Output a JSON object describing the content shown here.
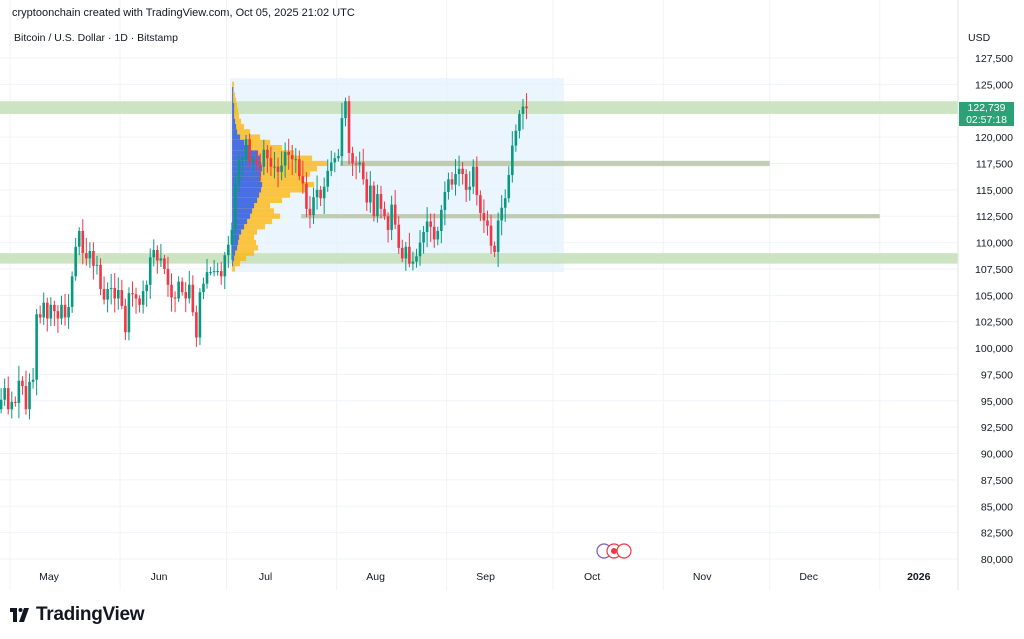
{
  "header": {
    "caption": "cryptoonchain created with TradingView.com, Oct 05, 2025 21:02 UTC",
    "symbol": "Bitcoin / U.S. Dollar · 1D · Bitstamp"
  },
  "price_scale": {
    "currency": "USD",
    "last_price": "122,739",
    "countdown": "02:57:18"
  },
  "logo": {
    "text": "TradingView",
    "icon": "tradingview-logo-icon"
  },
  "colors": {
    "up": "#089981",
    "down": "#f23645",
    "zone_fill": "#c8e1bd",
    "range_fill": "#e3f2fd",
    "profile_blue": "#2962ff",
    "profile_orange": "#ffb300",
    "last_price_tag": "#2aa275"
  },
  "chart_data": {
    "type": "candlestick",
    "ylim": [
      80000,
      127500
    ],
    "y_ticks": [
      80000,
      82500,
      85000,
      87500,
      90000,
      92500,
      95000,
      97500,
      100000,
      102500,
      105000,
      107500,
      110000,
      112500,
      115000,
      117500,
      120000,
      122500,
      125000,
      127500
    ],
    "y_tick_labels": [
      "80,000",
      "82,500",
      "85,000",
      "87,500",
      "90,000",
      "92,500",
      "95,000",
      "97,500",
      "100,000",
      "102,500",
      "105,000",
      "107,500",
      "110,000",
      "112,500",
      "115,000",
      "117,500",
      "120,000",
      "122,500",
      "125,000",
      "127,500"
    ],
    "x_ticks": [
      {
        "label": "May",
        "day": 0
      },
      {
        "label": "Jun",
        "day": 31
      },
      {
        "label": "Jul",
        "day": 61
      },
      {
        "label": "Aug",
        "day": 92
      },
      {
        "label": "Sep",
        "day": 123
      },
      {
        "label": "Oct",
        "day": 153
      },
      {
        "label": "Nov",
        "day": 184
      },
      {
        "label": "Dec",
        "day": 214
      },
      {
        "label": "2026",
        "day": 245
      }
    ],
    "candles": {
      "start": "2025-04-22",
      "interval": "1D",
      "closes": [
        93500,
        93800,
        94300,
        94600,
        95000,
        94200,
        95100,
        96200,
        94200,
        94900,
        94800,
        96900,
        96400,
        94200,
        96800,
        97000,
        103200,
        102900,
        104300,
        102800,
        104100,
        103500,
        102800,
        104100,
        102900,
        103900,
        106800,
        109600,
        111100,
        109000,
        108500,
        109200,
        107800,
        107900,
        105600,
        104600,
        105600,
        105700,
        104700,
        105500,
        104000,
        101500,
        105200,
        105100,
        104700,
        104100,
        105400,
        106000,
        108600,
        109300,
        108300,
        108500,
        107500,
        106000,
        104800,
        104700,
        106300,
        105300,
        104700,
        106000,
        103400,
        101000,
        105300,
        106100,
        107200,
        107200,
        107300,
        107300,
        106800,
        108800,
        109800,
        111200,
        115500,
        117800,
        117900,
        119800,
        117700,
        117900,
        117500,
        117200,
        118800,
        118000,
        117200,
        117200,
        116700,
        117300,
        118600,
        118300,
        117900,
        117900,
        116300,
        115600,
        113200,
        112600,
        114300,
        115000,
        114200,
        115300,
        116800,
        117600,
        118000,
        118200,
        121800,
        123400,
        118500,
        117500,
        117400,
        117600,
        116000,
        113800,
        115400,
        112500,
        114600,
        113200,
        112500,
        111200,
        113600,
        111700,
        109500,
        108500,
        109600,
        108000,
        108200,
        108700,
        110000,
        111000,
        112000,
        111500,
        110300,
        111100,
        113100,
        114800,
        116000,
        115500,
        116500,
        117000,
        116500,
        115000,
        115300,
        117200,
        114500,
        112800,
        112100,
        111600,
        109700,
        109100,
        112100,
        113300,
        114200,
        116400,
        119200,
        120600,
        122200,
        122900,
        122739
      ]
    },
    "zones": [
      {
        "low": 122200,
        "high": 123400,
        "from_day": -12,
        "to_day": 279,
        "style": "band"
      },
      {
        "low": 108000,
        "high": 109000,
        "from_day": -12,
        "to_day": 279,
        "style": "band"
      },
      {
        "low": 117250,
        "high": 117750,
        "from_day": 93,
        "to_day": 214,
        "style": "line"
      },
      {
        "low": 112300,
        "high": 112700,
        "from_day": 82,
        "to_day": 245,
        "style": "line"
      }
    ],
    "range_box": {
      "from_day": 62,
      "to_day": 156,
      "low": 107200,
      "high": 125600
    },
    "volume_profile": [
      {
        "price": 107500,
        "total": 3,
        "inside": 0
      },
      {
        "price": 108000,
        "total": 8,
        "inside": 1
      },
      {
        "price": 108500,
        "total": 14,
        "inside": 2
      },
      {
        "price": 109000,
        "total": 22,
        "inside": 3
      },
      {
        "price": 109500,
        "total": 26,
        "inside": 5
      },
      {
        "price": 110000,
        "total": 24,
        "inside": 6
      },
      {
        "price": 110500,
        "total": 22,
        "inside": 7
      },
      {
        "price": 111000,
        "total": 25,
        "inside": 9
      },
      {
        "price": 111500,
        "total": 33,
        "inside": 12
      },
      {
        "price": 112000,
        "total": 40,
        "inside": 15
      },
      {
        "price": 112500,
        "total": 48,
        "inside": 18
      },
      {
        "price": 113000,
        "total": 42,
        "inside": 20
      },
      {
        "price": 113500,
        "total": 38,
        "inside": 22
      },
      {
        "price": 114000,
        "total": 50,
        "inside": 25
      },
      {
        "price": 114500,
        "total": 58,
        "inside": 27
      },
      {
        "price": 115000,
        "total": 75,
        "inside": 29
      },
      {
        "price": 115500,
        "total": 82,
        "inside": 30
      },
      {
        "price": 116000,
        "total": 70,
        "inside": 28
      },
      {
        "price": 116500,
        "total": 78,
        "inside": 29
      },
      {
        "price": 117000,
        "total": 85,
        "inside": 30
      },
      {
        "price": 117500,
        "total": 95,
        "inside": 29
      },
      {
        "price": 118000,
        "total": 80,
        "inside": 28
      },
      {
        "price": 118500,
        "total": 62,
        "inside": 26
      },
      {
        "price": 119000,
        "total": 50,
        "inside": 18
      },
      {
        "price": 119500,
        "total": 38,
        "inside": 12
      },
      {
        "price": 120000,
        "total": 28,
        "inside": 8
      },
      {
        "price": 120500,
        "total": 18,
        "inside": 5
      },
      {
        "price": 121000,
        "total": 12,
        "inside": 4
      },
      {
        "price": 121500,
        "total": 9,
        "inside": 3
      },
      {
        "price": 122000,
        "total": 7,
        "inside": 2
      },
      {
        "price": 122500,
        "total": 6,
        "inside": 2
      },
      {
        "price": 123000,
        "total": 5,
        "inside": 2
      },
      {
        "price": 123500,
        "total": 4,
        "inside": 1
      },
      {
        "price": 124000,
        "total": 3,
        "inside": 1
      },
      {
        "price": 124500,
        "total": 2,
        "inside": 1
      },
      {
        "price": 125000,
        "total": 2,
        "inside": 0
      }
    ],
    "grid": true
  }
}
